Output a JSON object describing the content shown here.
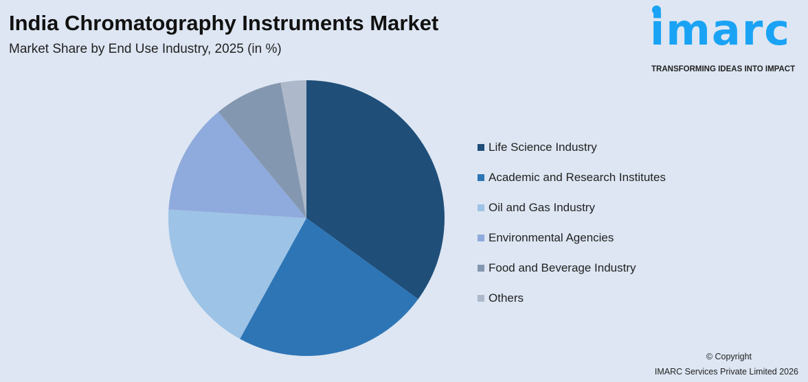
{
  "title": "India Chromatography Instruments Market",
  "subtitle": "Market Share by End Use Industry, 2025 (in %)",
  "logo": {
    "word": "imarc",
    "tagline": "TRANSFORMING IDEAS INTO IMPACT",
    "color": "#1aa3f5"
  },
  "footer": {
    "copyright": "© Copyright",
    "company": "IMARC Services Private Limited 2026"
  },
  "chart_data": {
    "type": "pie",
    "title": "India Chromatography Instruments Market",
    "subtitle": "Market Share by End Use Industry, 2025 (in %)",
    "legend_position": "right",
    "categories": [
      "Life Science Industry",
      "Academic and Research Institutes",
      "Oil and Gas Industry",
      "Environmental Agencies",
      "Food and Beverage Industry",
      "Others"
    ],
    "values": [
      35,
      23,
      18,
      13,
      8,
      3
    ],
    "colors": [
      "#1f4e79",
      "#2e75b6",
      "#9dc3e6",
      "#8faadc",
      "#8497b0",
      "#adb9ca"
    ]
  }
}
